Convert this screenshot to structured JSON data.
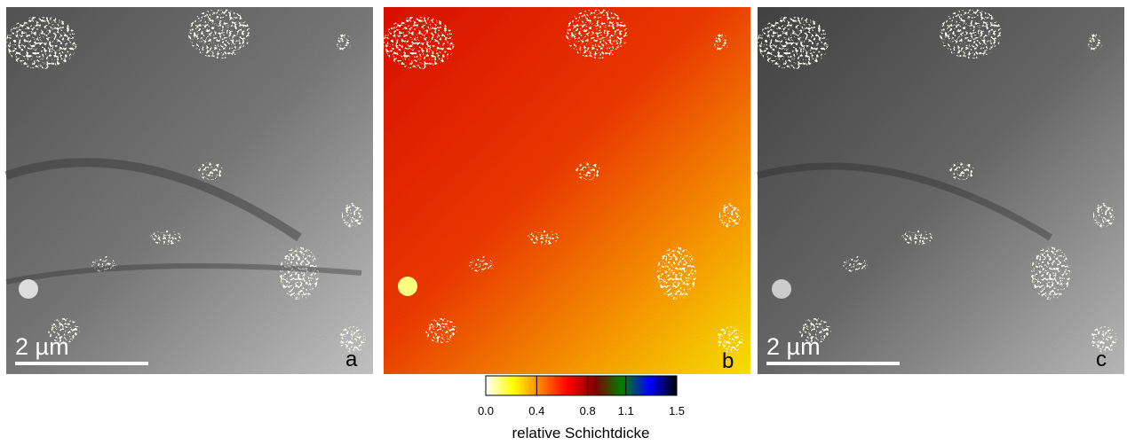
{
  "panels": [
    {
      "letter": "a",
      "scale_bar": "2 µm"
    },
    {
      "letter": "b"
    },
    {
      "letter": "c",
      "scale_bar": "2 µm"
    }
  ],
  "colorbar": {
    "lim": [
      0,
      1.5
    ],
    "ticks": [
      {
        "value": 0,
        "label": "0.0"
      },
      0.4,
      0.8,
      1.1,
      1.5
    ],
    "colors": [
      "#ffffff",
      "#ffff00",
      "#ff8000",
      "#ff0000",
      "#800000",
      "#008000",
      "#0000ff",
      "#000000"
    ],
    "label": "relative Schichtdicke"
  }
}
